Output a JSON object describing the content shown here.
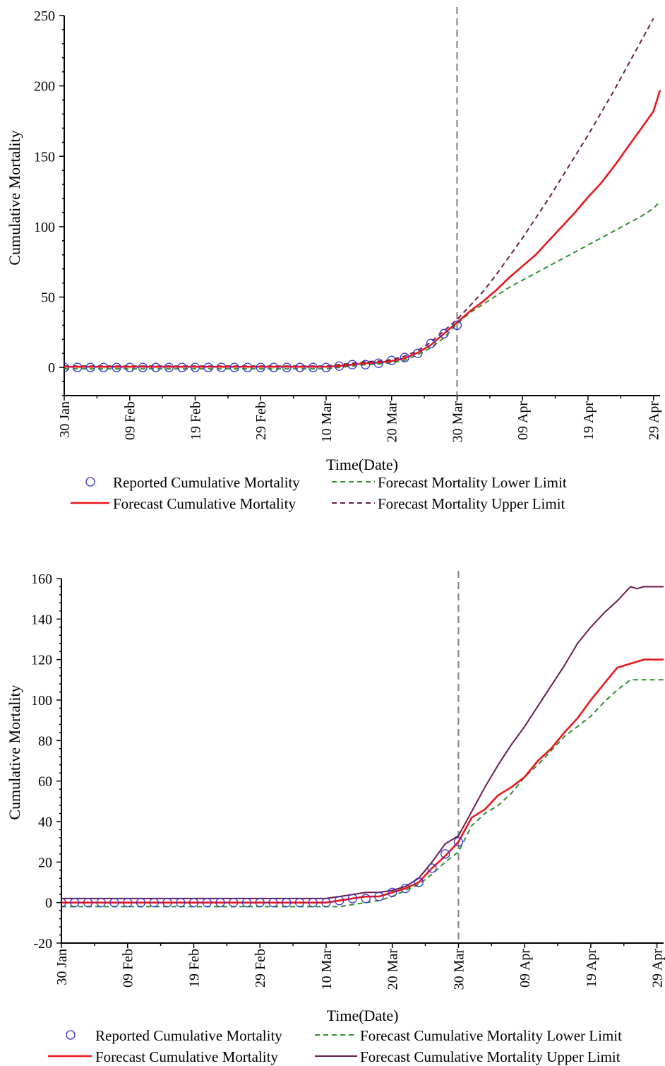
{
  "charts": [
    {
      "legend": {
        "reported": "Reported Cumulative Mortality",
        "forecast": "Forecast Cumulative Mortality",
        "lower": "Forecast Mortality Lower Limit",
        "upper": "Forecast Mortality Upper Limit"
      }
    },
    {
      "legend": {
        "reported": "Reported Cumulative Mortality",
        "forecast": "Forecast Cumulative Mortality",
        "lower": "Forecast Cumulative Mortality Lower Limit",
        "upper": "Forecast Cumulative Mortality Upper Limit"
      }
    }
  ],
  "chart_data": [
    {
      "type": "line",
      "xlabel": "Time(Date)",
      "ylabel": "Cumulative Mortality",
      "x_unit": "days since 30 Jan",
      "xlim": [
        0,
        91
      ],
      "ylim": [
        -20,
        250
      ],
      "yticks": [
        0,
        50,
        100,
        150,
        200,
        250
      ],
      "xtick_labels": [
        "30 Jan",
        "09 Feb",
        "19 Feb",
        "29 Feb",
        "10 Mar",
        "20 Mar",
        "30 Mar",
        "09 Apr",
        "19 Apr",
        "29 Apr"
      ],
      "xtick_days": [
        0,
        10,
        20,
        30,
        40,
        50,
        60,
        70,
        80,
        90
      ],
      "forecast_start_day": 60,
      "grid": false,
      "legend_position": "bottom",
      "colors": {
        "reported": "#3333cc",
        "forecast": "#e8161b",
        "lower": "#2f8f2f",
        "upper": "#6b1b4b",
        "divider": "#888888"
      },
      "series": [
        {
          "name": "Reported Cumulative Mortality",
          "style": "marker",
          "x": [
            0,
            2,
            4,
            6,
            8,
            10,
            12,
            14,
            16,
            18,
            20,
            22,
            24,
            26,
            28,
            30,
            32,
            34,
            36,
            38,
            40,
            42,
            44,
            46,
            48,
            50,
            52,
            54,
            56,
            58,
            60
          ],
          "y": [
            0,
            0,
            0,
            0,
            0,
            0,
            0,
            0,
            0,
            0,
            0,
            0,
            0,
            0,
            0,
            0,
            0,
            0,
            0,
            0,
            0,
            1,
            2,
            2,
            3,
            5,
            7,
            10,
            17,
            24,
            30
          ]
        },
        {
          "name": "Forecast Cumulative Mortality",
          "style": "solid",
          "x": [
            0,
            40,
            42,
            44,
            46,
            48,
            50,
            52,
            54,
            56,
            58,
            60,
            62,
            64,
            66,
            68,
            70,
            72,
            74,
            76,
            78,
            80,
            82,
            84,
            86,
            88,
            90,
            91
          ],
          "y": [
            0.5,
            0.5,
            1,
            2,
            3,
            3.5,
            4.5,
            6.5,
            10.5,
            16,
            24,
            32,
            40,
            47,
            55,
            64,
            72,
            80,
            90,
            100,
            110,
            121,
            131,
            143,
            156,
            169,
            182,
            197
          ]
        },
        {
          "name": "Forecast Mortality Lower Limit",
          "style": "dashed",
          "x": [
            0,
            40,
            42,
            44,
            46,
            48,
            50,
            52,
            54,
            56,
            58,
            60,
            62,
            64,
            66,
            68,
            70,
            72,
            74,
            76,
            78,
            80,
            82,
            84,
            86,
            88,
            90,
            91
          ],
          "y": [
            -1,
            -1,
            0,
            1,
            2,
            2.5,
            3.5,
            5,
            9,
            14,
            21,
            31,
            39,
            45,
            51,
            57,
            62,
            67,
            72,
            77,
            82,
            87,
            92,
            97,
            102,
            107,
            113,
            118
          ]
        },
        {
          "name": "Forecast Mortality Upper Limit",
          "style": "dashed",
          "x": [
            0,
            40,
            42,
            44,
            46,
            48,
            50,
            52,
            54,
            56,
            58,
            60,
            62,
            64,
            66,
            68,
            70,
            72,
            74,
            76,
            78,
            80,
            82,
            84,
            86,
            88,
            90
          ],
          "y": [
            1,
            1,
            2,
            3,
            4,
            4.5,
            5.5,
            8,
            12,
            18,
            26,
            34,
            44,
            54,
            66,
            79,
            92,
            106,
            120,
            135,
            150,
            165,
            181,
            197,
            214,
            231,
            248
          ]
        }
      ]
    },
    {
      "type": "line",
      "xlabel": "Time(Date)",
      "ylabel": "Cumulative Mortality",
      "x_unit": "days since 30 Jan",
      "xlim": [
        0,
        91
      ],
      "ylim": [
        -20,
        160
      ],
      "yticks": [
        -20,
        0,
        20,
        40,
        60,
        80,
        100,
        120,
        140,
        160
      ],
      "xtick_labels": [
        "30 Jan",
        "09 Feb",
        "19 Feb",
        "29 Feb",
        "10 Mar",
        "20 Mar",
        "30 Mar",
        "09 Apr",
        "19 Apr",
        "29 Apr"
      ],
      "xtick_days": [
        0,
        10,
        20,
        30,
        40,
        50,
        60,
        70,
        80,
        90
      ],
      "forecast_start_day": 60,
      "grid": false,
      "legend_position": "bottom",
      "colors": {
        "reported": "#3333cc",
        "forecast": "#e8161b",
        "lower": "#2f8f2f",
        "upper": "#6b1b4b",
        "divider": "#888888"
      },
      "series": [
        {
          "name": "Reported Cumulative Mortality",
          "style": "marker",
          "x": [
            0,
            2,
            4,
            6,
            8,
            10,
            12,
            14,
            16,
            18,
            20,
            22,
            24,
            26,
            28,
            30,
            32,
            34,
            36,
            38,
            40,
            42,
            44,
            46,
            48,
            50,
            52,
            54,
            56,
            58,
            60
          ],
          "y": [
            0,
            0,
            0,
            0,
            0,
            0,
            0,
            0,
            0,
            0,
            0,
            0,
            0,
            0,
            0,
            0,
            0,
            0,
            0,
            0,
            0,
            1,
            2,
            2,
            3,
            5,
            7,
            10,
            17,
            24,
            30
          ]
        },
        {
          "name": "Forecast Cumulative Mortality",
          "style": "solid",
          "x": [
            0,
            40,
            42,
            44,
            46,
            48,
            50,
            52,
            54,
            56,
            58,
            60,
            62,
            64,
            66,
            68,
            70,
            72,
            74,
            76,
            78,
            80,
            82,
            84,
            86,
            88,
            90,
            91
          ],
          "y": [
            0,
            0,
            1,
            2,
            3,
            3,
            5,
            7,
            10,
            17,
            23,
            30,
            42,
            46,
            53,
            57,
            62,
            70,
            76,
            84,
            91,
            100,
            108,
            116,
            118,
            120,
            120,
            120
          ]
        },
        {
          "name": "Forecast Cumulative Mortality Lower Limit",
          "style": "dashed",
          "x": [
            0,
            40,
            42,
            44,
            46,
            48,
            50,
            52,
            54,
            56,
            58,
            60,
            62,
            64,
            66,
            68,
            70,
            72,
            74,
            76,
            78,
            80,
            82,
            84,
            86,
            88,
            90,
            91
          ],
          "y": [
            -2,
            -2,
            -2,
            -1,
            0,
            1,
            3,
            6,
            9,
            14,
            20,
            25,
            38,
            44,
            48,
            54,
            62,
            68,
            75,
            82,
            87,
            92,
            99,
            105,
            110,
            110,
            110,
            110
          ]
        },
        {
          "name": "Forecast Cumulative Mortality Upper Limit",
          "style": "solid",
          "x": [
            0,
            40,
            42,
            44,
            46,
            48,
            50,
            52,
            54,
            56,
            58,
            60,
            62,
            64,
            66,
            68,
            70,
            72,
            74,
            76,
            78,
            80,
            82,
            84,
            86,
            87,
            88,
            90,
            91
          ],
          "y": [
            2,
            2,
            3,
            4,
            5,
            5,
            6,
            8,
            12,
            20,
            29,
            33,
            45,
            57,
            68,
            78,
            87,
            97,
            107,
            117,
            128,
            136,
            143,
            149,
            156,
            155,
            156,
            156,
            156
          ]
        }
      ]
    }
  ]
}
